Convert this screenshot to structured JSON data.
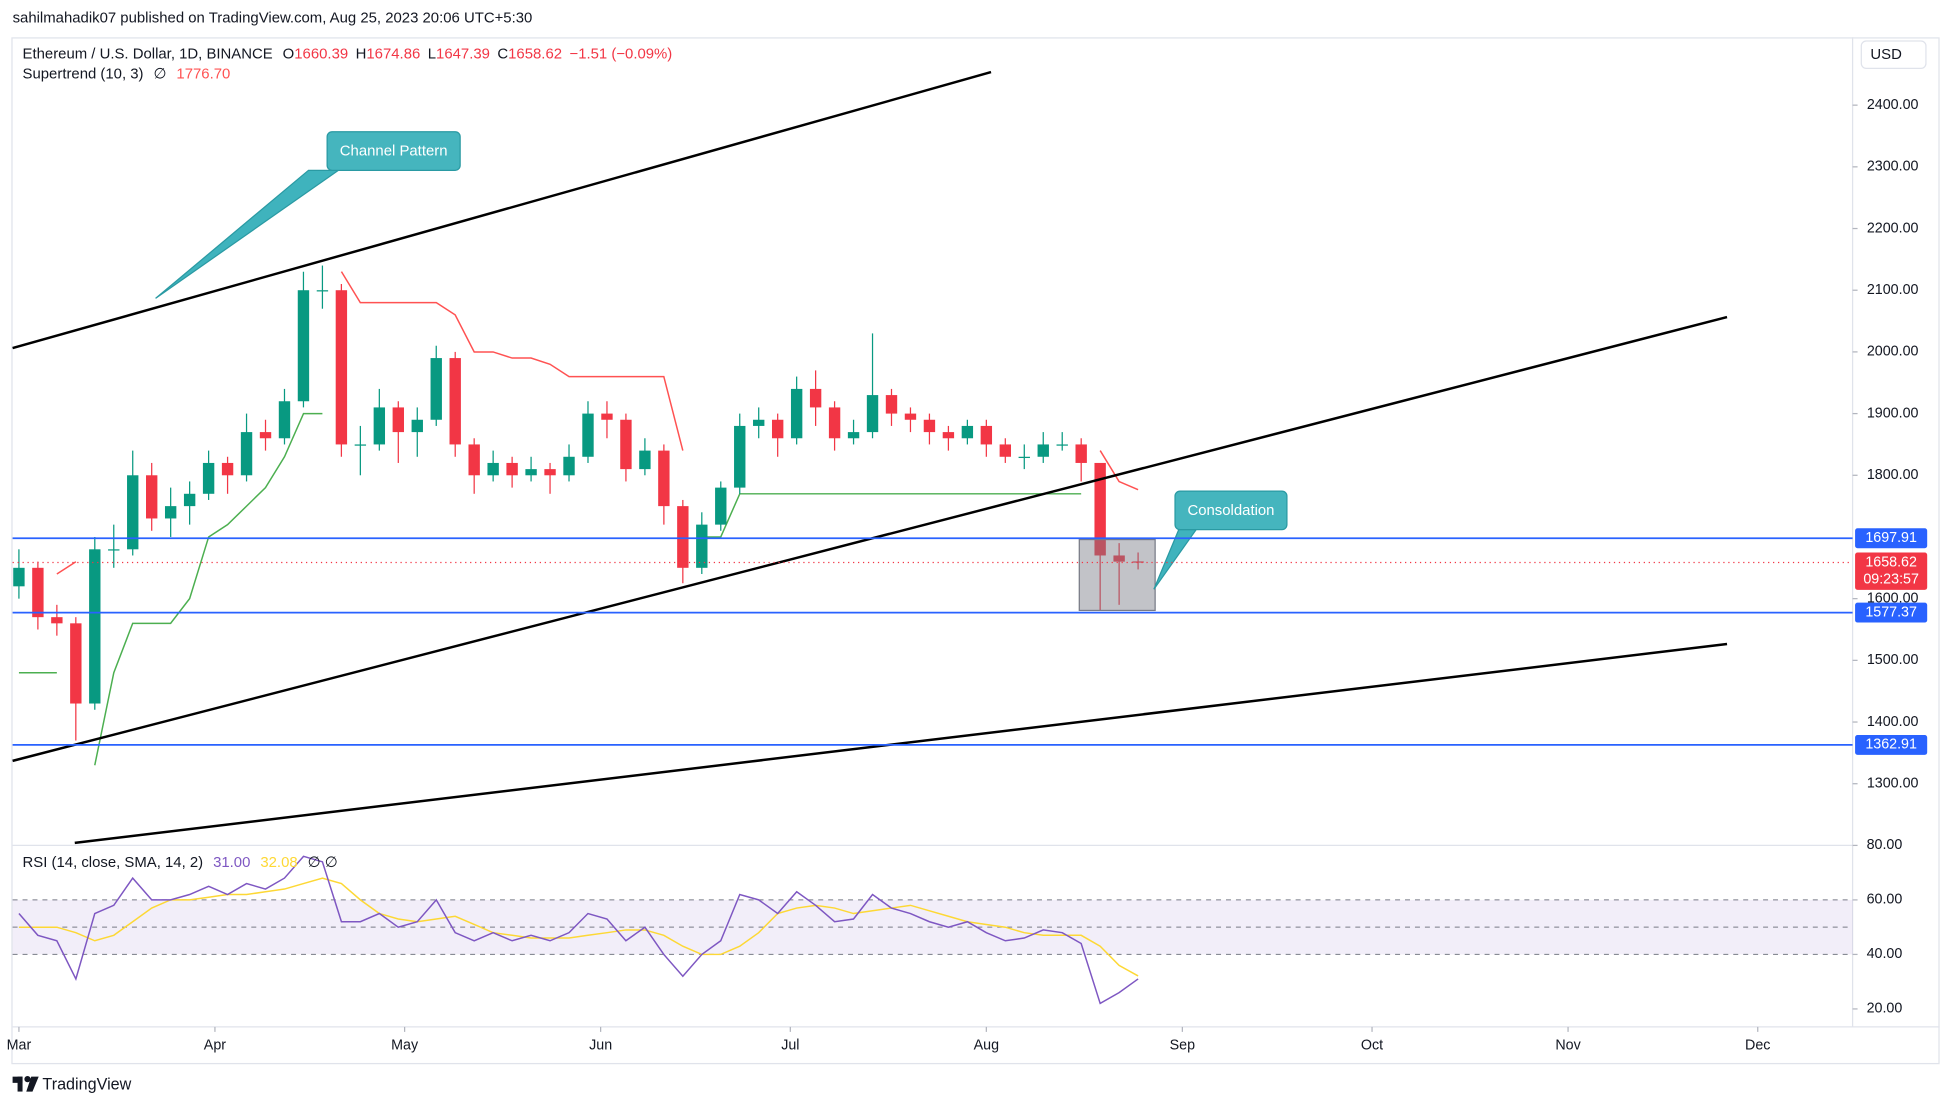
{
  "header": {
    "publisher": "sahilmahadik07 published on TradingView.com, Aug 25, 2023 20:06 UTC+5:30",
    "brand": "TradingView",
    "currency": "USD"
  },
  "chart_data": [
    {
      "type": "candlestick",
      "title": "Ethereum / U.S. Dollar, 1D, BINANCE",
      "ohlc_labels": [
        "O",
        "H",
        "L",
        "C"
      ],
      "change": "−1.51 (−0.09%)",
      "indicator": "Supertrend (10, 3)",
      "indicator_symbol": "∅",
      "indicator_value": "1776.70",
      "x": [
        "2023-03-01",
        "2023-03-04",
        "2023-03-07",
        "2023-03-10",
        "2023-03-13",
        "2023-03-16",
        "2023-03-19",
        "2023-03-22",
        "2023-03-25",
        "2023-03-28",
        "2023-03-31",
        "2023-04-03",
        "2023-04-06",
        "2023-04-09",
        "2023-04-12",
        "2023-04-15",
        "2023-04-18",
        "2023-04-21",
        "2023-04-24",
        "2023-04-27",
        "2023-04-30",
        "2023-05-03",
        "2023-05-06",
        "2023-05-09",
        "2023-05-12",
        "2023-05-15",
        "2023-05-18",
        "2023-05-21",
        "2023-05-24",
        "2023-05-27",
        "2023-05-30",
        "2023-06-02",
        "2023-06-05",
        "2023-06-08",
        "2023-06-11",
        "2023-06-14",
        "2023-06-17",
        "2023-06-20",
        "2023-06-23",
        "2023-06-26",
        "2023-06-29",
        "2023-07-02",
        "2023-07-05",
        "2023-07-08",
        "2023-07-11",
        "2023-07-14",
        "2023-07-17",
        "2023-07-20",
        "2023-07-23",
        "2023-07-26",
        "2023-07-29",
        "2023-08-01",
        "2023-08-04",
        "2023-08-07",
        "2023-08-10",
        "2023-08-13",
        "2023-08-16",
        "2023-08-19",
        "2023-08-22",
        "2023-08-25"
      ],
      "open": [
        1620,
        1650,
        1570,
        1560,
        1430,
        1680,
        1680,
        1800,
        1730,
        1750,
        1770,
        1820,
        1800,
        1870,
        1860,
        1920,
        2100,
        2100,
        1850,
        1850,
        1910,
        1870,
        1890,
        1990,
        1850,
        1800,
        1820,
        1800,
        1810,
        1800,
        1830,
        1900,
        1890,
        1810,
        1840,
        1750,
        1650,
        1720,
        1780,
        1880,
        1890,
        1860,
        1940,
        1910,
        1860,
        1870,
        1930,
        1900,
        1890,
        1870,
        1860,
        1880,
        1850,
        1830,
        1830,
        1850,
        1850,
        1820,
        1670,
        1660.39
      ],
      "high": [
        1680,
        1660,
        1590,
        1570,
        1700,
        1720,
        1840,
        1820,
        1780,
        1790,
        1840,
        1830,
        1900,
        1890,
        1940,
        2130,
        2140,
        2110,
        1880,
        1940,
        1920,
        1910,
        2010,
        2000,
        1860,
        1840,
        1830,
        1830,
        1820,
        1850,
        1920,
        1920,
        1900,
        1860,
        1850,
        1760,
        1740,
        1790,
        1900,
        1910,
        1900,
        1960,
        1970,
        1920,
        1890,
        2030,
        1940,
        1910,
        1900,
        1880,
        1890,
        1890,
        1860,
        1850,
        1870,
        1870,
        1860,
        1820,
        1690,
        1674.86
      ],
      "low": [
        1600,
        1550,
        1540,
        1370,
        1420,
        1650,
        1670,
        1710,
        1700,
        1720,
        1760,
        1770,
        1790,
        1840,
        1850,
        1910,
        2070,
        1830,
        1800,
        1840,
        1820,
        1830,
        1880,
        1830,
        1770,
        1790,
        1780,
        1790,
        1770,
        1790,
        1820,
        1860,
        1790,
        1800,
        1720,
        1625,
        1640,
        1710,
        1770,
        1860,
        1830,
        1850,
        1880,
        1840,
        1850,
        1860,
        1880,
        1870,
        1850,
        1840,
        1850,
        1830,
        1820,
        1810,
        1820,
        1840,
        1790,
        1580,
        1590,
        1647.39
      ],
      "close": [
        1650,
        1570,
        1560,
        1430,
        1680,
        1680,
        1800,
        1730,
        1750,
        1770,
        1820,
        1800,
        1870,
        1860,
        1920,
        2100,
        2100,
        1850,
        1850,
        1910,
        1870,
        1890,
        1990,
        1850,
        1800,
        1820,
        1800,
        1810,
        1800,
        1830,
        1900,
        1890,
        1810,
        1840,
        1750,
        1650,
        1720,
        1780,
        1880,
        1890,
        1860,
        1940,
        1910,
        1860,
        1870,
        1930,
        1900,
        1890,
        1870,
        1860,
        1880,
        1850,
        1830,
        1830,
        1850,
        1850,
        1820,
        1670,
        1660,
        1658.62
      ],
      "up_color": "#089981",
      "down_color": "#f23645",
      "supertrend_up": {
        "color": "#4caf50",
        "values": [
          1480,
          1480,
          1480,
          null,
          1330,
          1480,
          1560,
          1560,
          1560,
          1600,
          1700,
          1720,
          1750,
          1780,
          1830,
          1900,
          1900,
          null,
          null,
          null,
          null,
          null,
          null,
          null,
          null,
          null,
          null,
          null,
          null,
          null,
          null,
          null,
          null,
          null,
          null,
          null,
          1700,
          1700,
          1770,
          1770,
          1770,
          1770,
          1770,
          1770,
          1770,
          1770,
          1770,
          1770,
          1770,
          1770,
          1770,
          1770,
          1770,
          1770,
          1770,
          1770,
          1770,
          null,
          null,
          null
        ]
      },
      "supertrend_down": {
        "color": "#ff5252",
        "values": [
          null,
          null,
          1640,
          1660,
          null,
          null,
          null,
          null,
          null,
          null,
          null,
          null,
          null,
          null,
          null,
          null,
          null,
          2130,
          2080,
          2080,
          2080,
          2080,
          2080,
          2060,
          2000,
          2000,
          1990,
          1990,
          1980,
          1960,
          1960,
          1960,
          1960,
          1960,
          1960,
          1840,
          null,
          null,
          null,
          null,
          null,
          null,
          null,
          null,
          null,
          null,
          null,
          null,
          null,
          null,
          null,
          null,
          null,
          null,
          null,
          null,
          null,
          1840,
          1790,
          1776.7
        ]
      },
      "xlim": [
        "2023-02-28",
        "2023-12-16"
      ],
      "xticks": [
        {
          "value": "2023-03-01",
          "label": "Mar"
        },
        {
          "value": "2023-04-01",
          "label": "Apr"
        },
        {
          "value": "2023-05-01",
          "label": "May"
        },
        {
          "value": "2023-06-01",
          "label": "Jun"
        },
        {
          "value": "2023-07-01",
          "label": "Jul"
        },
        {
          "value": "2023-08-01",
          "label": "Aug"
        },
        {
          "value": "2023-09-01",
          "label": "Sep"
        },
        {
          "value": "2023-10-01",
          "label": "Oct"
        },
        {
          "value": "2023-11-01",
          "label": "Nov"
        },
        {
          "value": "2023-12-01",
          "label": "Dec"
        }
      ],
      "ylim": [
        1200,
        2510
      ],
      "yticks": [
        {
          "value": 1300,
          "label": "1300.00"
        },
        {
          "value": 1400,
          "label": "1400.00"
        },
        {
          "value": 1500,
          "label": "1500.00"
        },
        {
          "value": 1600,
          "label": "1600.00"
        },
        {
          "value": 1800,
          "label": "1800.00"
        },
        {
          "value": 1900,
          "label": "1900.00"
        },
        {
          "value": 2000,
          "label": "2000.00"
        },
        {
          "value": 2100,
          "label": "2100.00"
        },
        {
          "value": 2200,
          "label": "2200.00"
        },
        {
          "value": 2300,
          "label": "2300.00"
        },
        {
          "value": 2400,
          "label": "2400.00"
        }
      ],
      "hlines": [
        1697.91,
        1577.37,
        1362.91
      ],
      "hline_color": "#2962ff",
      "countdown": "09:23:57",
      "annotations": [
        "Channel Pattern",
        "Consoldation"
      ]
    },
    {
      "type": "line",
      "title": "RSI (14, close, SMA, 14, 2)",
      "empty_symbols": "∅ ∅",
      "series": [
        {
          "color": "#7e57c2",
          "last_label": "31.00",
          "values": [
            55,
            47,
            45,
            31,
            55,
            58,
            68,
            60,
            60,
            62,
            65,
            62,
            66,
            64,
            68,
            76,
            74,
            52,
            52,
            55,
            50,
            52,
            60,
            48,
            45,
            48,
            45,
            47,
            45,
            48,
            55,
            53,
            45,
            50,
            40,
            32,
            40,
            45,
            62,
            60,
            55,
            63,
            58,
            52,
            53,
            62,
            57,
            55,
            52,
            50,
            52,
            48,
            45,
            46,
            49,
            48,
            44,
            22,
            26,
            31
          ]
        },
        {
          "color": "#fdd835",
          "last_label": "32.08",
          "values": [
            50,
            50,
            50,
            48,
            45,
            47,
            52,
            57,
            60,
            60,
            61,
            62,
            62,
            63,
            64,
            66,
            68,
            66,
            60,
            55,
            53,
            52,
            53,
            54,
            51,
            48,
            47,
            46,
            46,
            46,
            47,
            48,
            49,
            49,
            47,
            43,
            40,
            40,
            43,
            48,
            55,
            57,
            58,
            57,
            55,
            56,
            57,
            58,
            56,
            54,
            52,
            51,
            50,
            48,
            47,
            47,
            47,
            43,
            36,
            32.08
          ]
        }
      ],
      "ylim": [
        13.4,
        80
      ],
      "yticks": [
        {
          "value": 20,
          "label": "20.00"
        },
        {
          "value": 40,
          "label": "40.00"
        },
        {
          "value": 60,
          "label": "60.00"
        },
        {
          "value": 80,
          "label": "80.00"
        }
      ],
      "band": [
        40,
        60
      ],
      "levels": [
        60,
        50,
        40
      ]
    }
  ]
}
